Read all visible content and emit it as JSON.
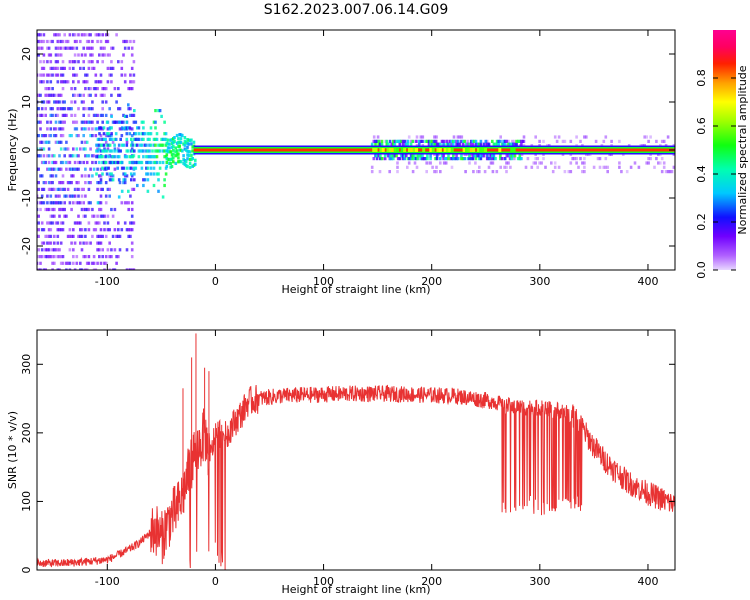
{
  "figure": {
    "title": "S162.2023.007.06.14.G09"
  },
  "chart_data": [
    {
      "type": "heatmap",
      "xlabel": "Height of straight line (km)",
      "ylabel": "Frequency (Hz)",
      "xlim": [
        -165,
        425
      ],
      "ylim": [
        -25,
        25
      ],
      "xticks": [
        -100,
        0,
        100,
        200,
        300,
        400
      ],
      "xtick_labels": [
        "-100",
        "0",
        "100",
        "200",
        "300",
        "400"
      ],
      "yticks": [
        -20,
        -10,
        0,
        10,
        20
      ],
      "ytick_labels": [
        "-20",
        "-10",
        "0",
        "10",
        "20"
      ],
      "grid": false,
      "colorbar": {
        "label": "Normalized spectral amplitude",
        "range": [
          0,
          1
        ],
        "ticks": [
          0.0,
          0.2,
          0.4,
          0.6,
          0.8
        ],
        "tick_labels": [
          "0.0",
          "0.2",
          "0.4",
          "0.6",
          "0.8"
        ],
        "colormap": "hsv-like: violet, blue, cyan, green, yellow, orange, red, magenta"
      },
      "signal_band": {
        "x_start": -20,
        "x_end": 425,
        "frequency_hz": 0,
        "core_amplitude": 0.85
      },
      "segments": [
        {
          "x_range": [
            -165,
            -75
          ],
          "description": "broadband noise",
          "amplitude": [
            0.05,
            0.3
          ],
          "freq_spread_hz": 25
        },
        {
          "x_range": [
            -75,
            -45
          ],
          "description": "noise cluster near 0 Hz",
          "amplitude": [
            0.2,
            0.45
          ],
          "freq_spread_hz": 8
        },
        {
          "x_range": [
            145,
            285
          ],
          "description": "broadened band with green/yellow speckle",
          "amplitude": [
            0.4,
            0.85
          ],
          "freq_spread_hz": 2
        },
        {
          "x_range": [
            285,
            425
          ],
          "description": "narrow band",
          "amplitude": [
            0.6,
            0.85
          ],
          "freq_spread_hz": 2
        }
      ]
    },
    {
      "type": "line",
      "xlabel": "Height of straight line (km)",
      "ylabel": "SNR (10 * v/v)",
      "xlim": [
        -165,
        425
      ],
      "ylim": [
        0,
        350
      ],
      "xticks": [
        -100,
        0,
        100,
        200,
        300,
        400
      ],
      "xtick_labels": [
        "-100",
        "0",
        "100",
        "200",
        "300",
        "400"
      ],
      "yticks": [
        0,
        100,
        200,
        300
      ],
      "ytick_labels": [
        "0",
        "100",
        "200",
        "300"
      ],
      "grid": false,
      "series": [
        {
          "color": "#e83232",
          "x": [
            -165,
            -140,
            -120,
            -100,
            -90,
            -80,
            -70,
            -60,
            -55,
            -50,
            -45,
            -40,
            -35,
            -30,
            -25,
            -20,
            -15,
            -10,
            -5,
            -2,
            0,
            5,
            10,
            15,
            20,
            25,
            30,
            40,
            50,
            60,
            80,
            100,
            120,
            140,
            160,
            180,
            200,
            220,
            240,
            260,
            265,
            280,
            300,
            320,
            330,
            340,
            350,
            360,
            370,
            380,
            390,
            400,
            410,
            425
          ],
          "y": [
            10,
            10,
            12,
            15,
            22,
            30,
            40,
            55,
            60,
            45,
            65,
            80,
            90,
            110,
            140,
            170,
            180,
            200,
            160,
            185,
            200,
            200,
            195,
            210,
            220,
            230,
            245,
            250,
            252,
            254,
            255,
            256,
            257,
            257,
            257,
            256,
            255,
            254,
            250,
            245,
            240,
            238,
            236,
            232,
            225,
            205,
            180,
            160,
            145,
            130,
            120,
            112,
            105,
            95
          ],
          "spikes": [
            {
              "x": -18,
              "y": 345
            },
            {
              "x": -22,
              "y": 310
            },
            {
              "x": -10,
              "y": 295
            },
            {
              "x": -6,
              "y": 290
            },
            {
              "x": -30,
              "y": 265
            }
          ],
          "dropouts": {
            "x_range": [
              265,
              340
            ],
            "min_y": 80,
            "description": "intermittent drops to 80-110"
          }
        }
      ]
    }
  ]
}
